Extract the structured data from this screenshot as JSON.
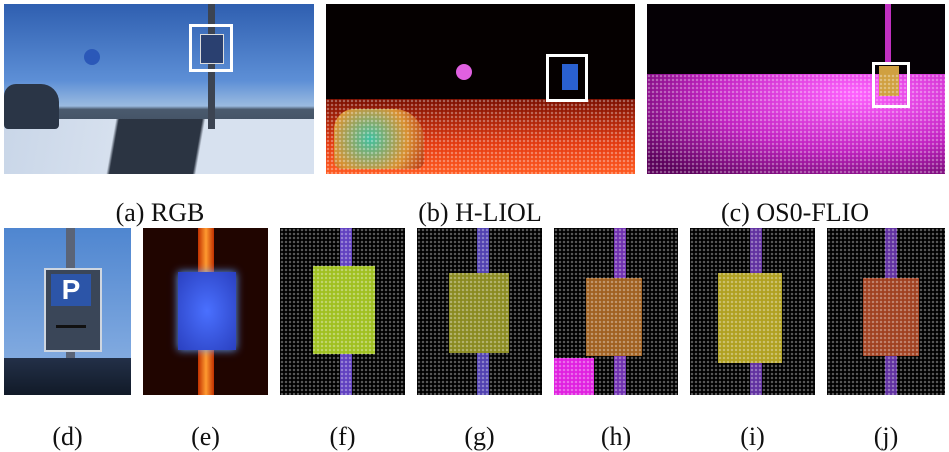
{
  "figure": {
    "top": [
      {
        "caption": "(a) RGB"
      },
      {
        "caption": "(b) H-LIOL"
      },
      {
        "caption": "(c) OS0-FLIO"
      }
    ],
    "bottom": [
      {
        "caption": "(d)"
      },
      {
        "caption": "(e)"
      },
      {
        "caption": "(f)"
      },
      {
        "caption": "(g)"
      },
      {
        "caption": "(h)"
      },
      {
        "caption": "(i)"
      },
      {
        "caption": "(j)"
      }
    ],
    "sign_text": "P"
  }
}
